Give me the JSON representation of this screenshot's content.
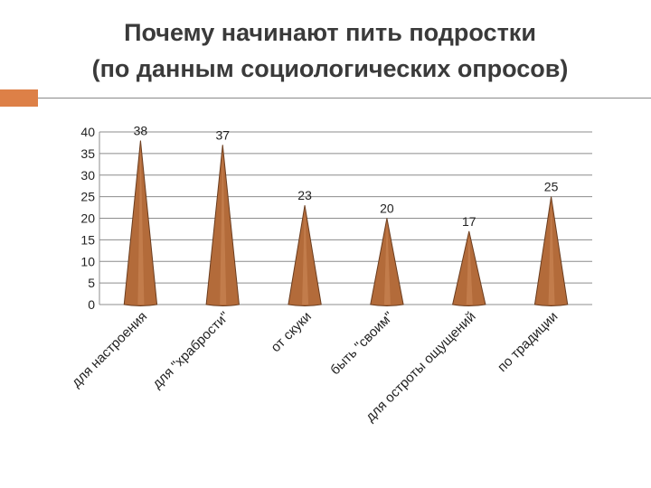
{
  "slide": {
    "title_line1": "Почему начинают пить подростки",
    "title_line2": "(по данным социологических опросов)"
  },
  "colors": {
    "accent": "#dd8047",
    "title": "#3a3a3a",
    "bar_fill": "#b36b3a",
    "bar_stroke": "#6b3d1f",
    "grid": "#8c8c8c"
  },
  "chart_data": {
    "type": "bar",
    "bar_shape": "cone",
    "categories": [
      "для настроения",
      "для \"храбрости\"",
      "от скуки",
      "быть \"своим\"",
      "для остроты ощущений",
      "по традиции"
    ],
    "values": [
      38,
      37,
      23,
      20,
      17,
      25
    ],
    "data_labels": [
      "38",
      "37",
      "23",
      "20",
      "17",
      "25"
    ],
    "yticks": [
      "0",
      "5",
      "10",
      "15",
      "20",
      "25",
      "30",
      "35",
      "40"
    ],
    "ylim": [
      0,
      40
    ],
    "grid": true,
    "title": "",
    "xlabel": "",
    "ylabel": ""
  }
}
